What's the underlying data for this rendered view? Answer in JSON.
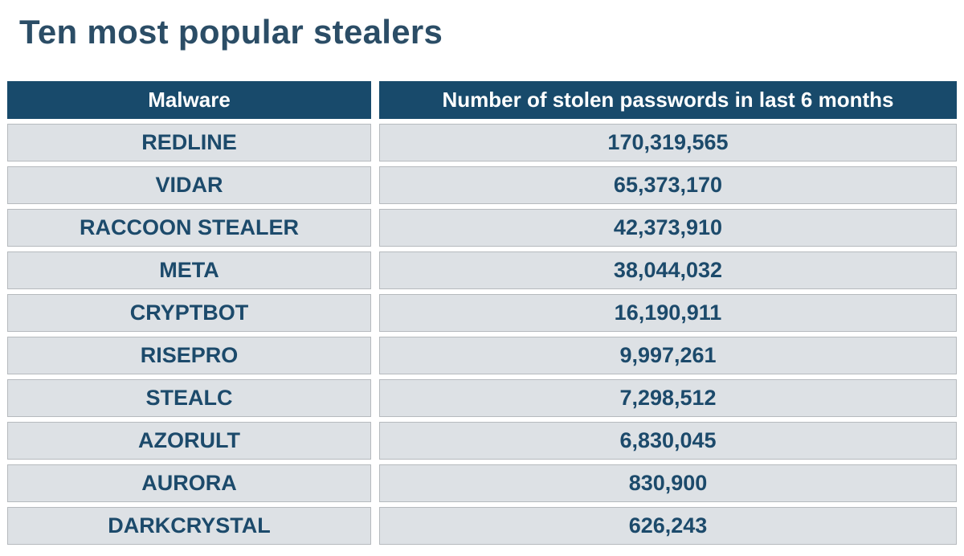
{
  "title": "Ten most popular stealers",
  "table": {
    "headers": [
      "Malware",
      "Number of stolen passwords in last 6 months"
    ],
    "rows": [
      {
        "malware": "REDLINE",
        "count": "170,319,565"
      },
      {
        "malware": "VIDAR",
        "count": "65,373,170"
      },
      {
        "malware": "RACCOON STEALER",
        "count": "42,373,910"
      },
      {
        "malware": "META",
        "count": "38,044,032"
      },
      {
        "malware": "CRYPTBOT",
        "count": "16,190,911"
      },
      {
        "malware": "RISEPRO",
        "count": "9,997,261"
      },
      {
        "malware": "STEALC",
        "count": "7,298,512"
      },
      {
        "malware": "AZORULT",
        "count": "6,830,045"
      },
      {
        "malware": "AURORA",
        "count": "830,900"
      },
      {
        "malware": "DARKCRYSTAL",
        "count": "626,243"
      }
    ]
  },
  "colors": {
    "title": "#2b4d66",
    "header_bg": "#184a6b",
    "header_text": "#ffffff",
    "cell_bg": "#dde1e5",
    "cell_text": "#1c4a6b"
  }
}
